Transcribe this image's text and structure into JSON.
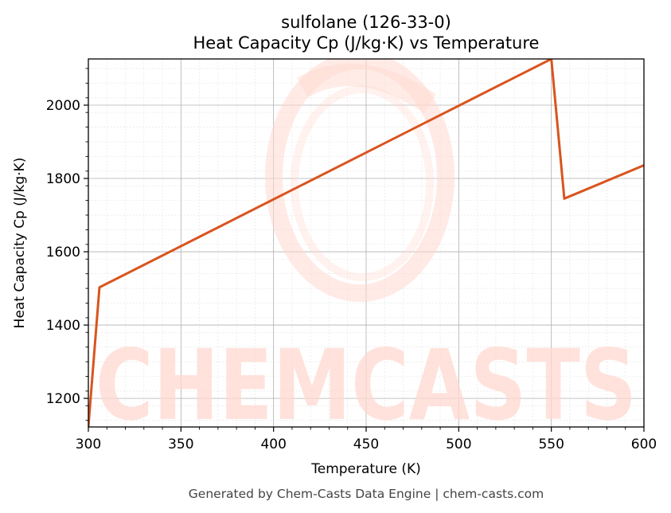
{
  "chart_data": {
    "type": "line",
    "title": "sulfolane (126-33-0)",
    "subtitle": "Heat Capacity Cp (J/kg·K) vs Temperature",
    "xlabel": "Temperature (K)",
    "ylabel": "Heat Capacity Cp (J/kg·K)",
    "xlim": [
      300,
      600
    ],
    "ylim": [
      1122,
      2126
    ],
    "x_ticks": [
      300,
      350,
      400,
      450,
      500,
      550,
      600
    ],
    "y_ticks": [
      1200,
      1400,
      1600,
      1800,
      2000
    ],
    "grid": true,
    "series": [
      {
        "color": "#d9541e",
        "x": [
          300,
          306,
          550,
          557,
          600
        ],
        "y": [
          1122,
          1503,
          2126,
          1745,
          1836
        ]
      }
    ]
  },
  "watermark": {
    "text": "CHEMCASTS",
    "color": "#ffd9d0"
  },
  "footer": "Generated by Chem-Casts Data Engine | chem-casts.com"
}
